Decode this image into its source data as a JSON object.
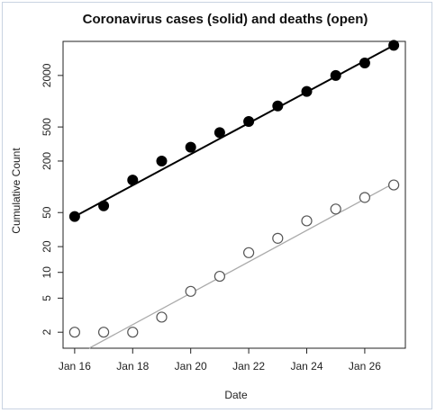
{
  "chart_data": {
    "type": "scatter",
    "title": "Coronavirus cases (solid) and deaths (open)",
    "xlabel": "Date",
    "ylabel": "Cumulative Count",
    "y_scale": "log",
    "x_dates": [
      "2020-01-16",
      "2020-01-17",
      "2020-01-18",
      "2020-01-19",
      "2020-01-20",
      "2020-01-21",
      "2020-01-22",
      "2020-01-23",
      "2020-01-24",
      "2020-01-25",
      "2020-01-26",
      "2020-01-27"
    ],
    "xlim": [
      "2020-01-15.6",
      "2020-01-27.4"
    ],
    "ylim": [
      1.3,
      5000
    ],
    "x_ticks": [
      {
        "date": "2020-01-16",
        "label": "Jan 16"
      },
      {
        "date": "2020-01-18",
        "label": "Jan 18"
      },
      {
        "date": "2020-01-20",
        "label": "Jan 20"
      },
      {
        "date": "2020-01-22",
        "label": "Jan 22"
      },
      {
        "date": "2020-01-24",
        "label": "Jan 24"
      },
      {
        "date": "2020-01-26",
        "label": "Jan 26"
      }
    ],
    "y_ticks": [
      {
        "value": 2,
        "label": "2"
      },
      {
        "value": 5,
        "label": "5"
      },
      {
        "value": 10,
        "label": "10"
      },
      {
        "value": 20,
        "label": "20"
      },
      {
        "value": 50,
        "label": "50"
      },
      {
        "value": 200,
        "label": "200"
      },
      {
        "value": 500,
        "label": "500"
      },
      {
        "value": 2000,
        "label": "2000"
      }
    ],
    "grid": false,
    "series": [
      {
        "marker": "filled-circle",
        "color": "#000000",
        "values": [
          45,
          60,
          120,
          200,
          290,
          430,
          580,
          880,
          1300,
          2000,
          2800,
          4500
        ],
        "fit_line": {
          "start": [
            "2020-01-16",
            45
          ],
          "end": [
            "2020-01-27",
            4500
          ],
          "color": "#000000"
        }
      },
      {
        "marker": "open-circle",
        "color": "#000000",
        "values": [
          2,
          2,
          2,
          3,
          6,
          9,
          17,
          25,
          40,
          55,
          75,
          105
        ],
        "fit_line": {
          "start": [
            "2020-01-16.5",
            1.3
          ],
          "end": [
            "2020-01-27",
            110
          ],
          "color": "#aaaaaa"
        }
      }
    ]
  }
}
